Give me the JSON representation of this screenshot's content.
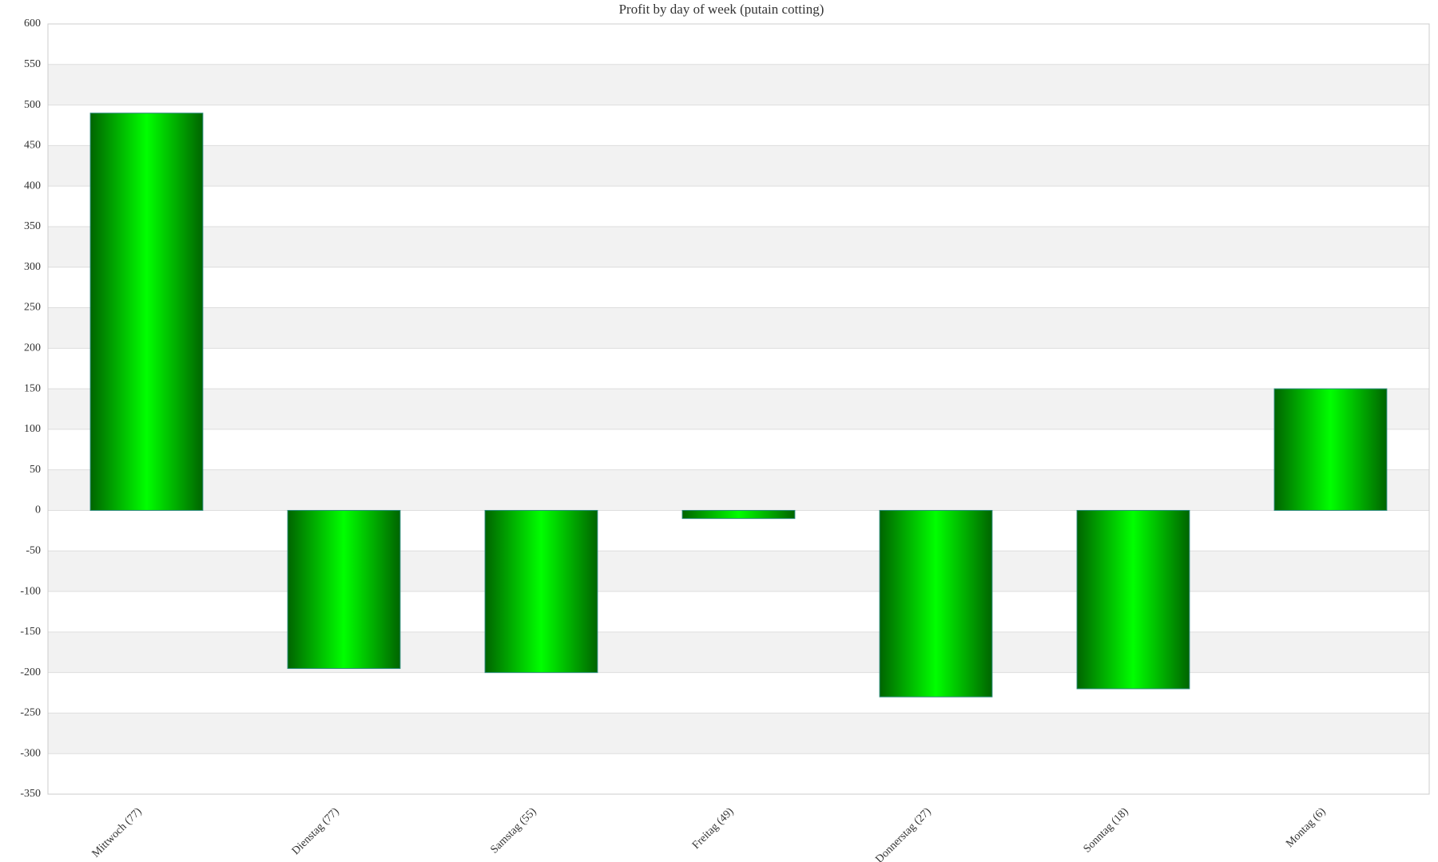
{
  "chart_data": {
    "type": "bar",
    "title": "Profit by day of week  (putain cotting)",
    "categories": [
      "Mittwoch (77)",
      "Dienstag (77)",
      "Samstag (55)",
      "Freitag (49)",
      "Donnerstag (27)",
      "Sonntag (18)",
      "Montag (6)"
    ],
    "values": [
      490,
      -195,
      -200,
      -10,
      -230,
      -220,
      150
    ],
    "color": "#00ff00",
    "ylim": [
      -350,
      600
    ],
    "yticks": [
      -350,
      -300,
      -250,
      -200,
      -150,
      -100,
      -50,
      0,
      50,
      100,
      150,
      200,
      250,
      300,
      350,
      400,
      450,
      500,
      550,
      600
    ],
    "grid": true
  }
}
